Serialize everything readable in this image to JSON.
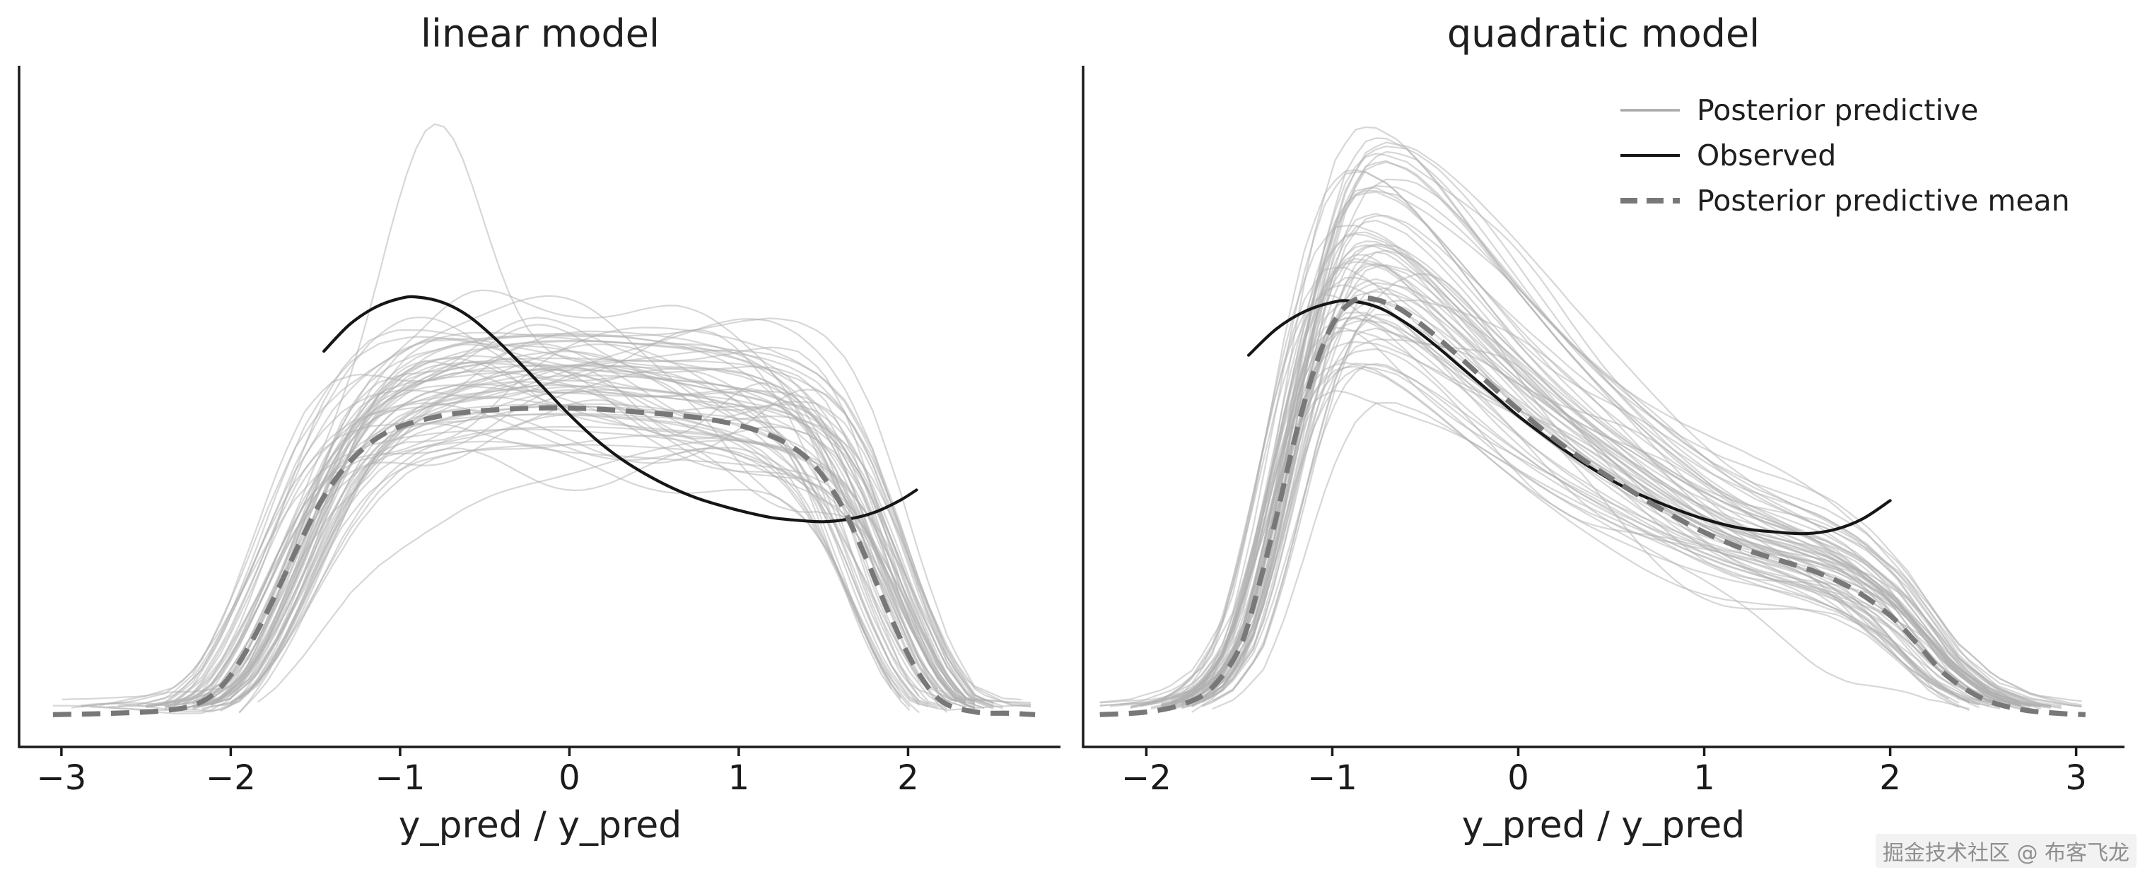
{
  "watermark": "掘金技术社区 @ 布客飞龙",
  "colors": {
    "background": "#ffffff",
    "observed": "#161616",
    "posterior_predictive": "#b0b0b0",
    "posterior_predictive_mean": "#787878",
    "axis": "#1a1a1a",
    "text": "#1f1f1f"
  },
  "legend": {
    "position": "upper right of quadratic panel",
    "items": [
      {
        "label": "Posterior predictive",
        "style": "thin-gray-line"
      },
      {
        "label": "Observed",
        "style": "solid-black-line"
      },
      {
        "label": "Posterior predictive mean",
        "style": "dashed-gray-line"
      }
    ]
  },
  "chart_data": [
    {
      "type": "line",
      "title": "linear model",
      "xlabel": "y_pred / y_pred",
      "x_ticks": [
        -3,
        -2,
        -1,
        0,
        1,
        2
      ],
      "xlim": [
        -3.25,
        2.9
      ],
      "ylim": [
        0,
        0.5
      ],
      "grid": false,
      "series": [
        {
          "name": "Observed",
          "x": [
            -1.45,
            -1.3,
            -1.15,
            -1.0,
            -0.9,
            -0.75,
            -0.6,
            -0.45,
            -0.3,
            -0.15,
            0.0,
            0.15,
            0.3,
            0.45,
            0.6,
            0.75,
            0.9,
            1.05,
            1.2,
            1.35,
            1.5,
            1.65,
            1.8,
            1.95,
            2.05
          ],
          "y": [
            0.285,
            0.305,
            0.318,
            0.325,
            0.326,
            0.322,
            0.312,
            0.296,
            0.277,
            0.257,
            0.237,
            0.219,
            0.204,
            0.192,
            0.182,
            0.174,
            0.168,
            0.163,
            0.159,
            0.157,
            0.156,
            0.158,
            0.163,
            0.172,
            0.18
          ]
        },
        {
          "name": "Posterior predictive mean",
          "x": [
            -3.05,
            -2.7,
            -2.4,
            -2.2,
            -2.05,
            -1.9,
            -1.75,
            -1.6,
            -1.45,
            -1.3,
            -1.15,
            -1.0,
            -0.8,
            -0.6,
            -0.4,
            -0.2,
            0.0,
            0.2,
            0.4,
            0.6,
            0.8,
            1.0,
            1.15,
            1.3,
            1.45,
            1.6,
            1.75,
            1.9,
            2.05,
            2.2,
            2.4,
            2.6,
            2.75
          ],
          "y": [
            0.01,
            0.011,
            0.013,
            0.018,
            0.032,
            0.06,
            0.097,
            0.138,
            0.175,
            0.201,
            0.218,
            0.228,
            0.235,
            0.239,
            0.241,
            0.242,
            0.242,
            0.241,
            0.239,
            0.237,
            0.234,
            0.229,
            0.223,
            0.214,
            0.198,
            0.17,
            0.129,
            0.083,
            0.044,
            0.02,
            0.012,
            0.011,
            0.01
          ]
        },
        {
          "name": "Posterior predictive",
          "n_samples": 65,
          "seed": 13,
          "amp_min": 0.8,
          "amp_span": 0.5,
          "x_jitter": 0.21,
          "n_bumps": 4,
          "bump_amp": 0.045,
          "outlier_bump": {
            "x": -0.8,
            "amp": 0.2,
            "w": 0.4
          }
        }
      ]
    },
    {
      "type": "line",
      "title": "quadratic model",
      "xlabel": "y_pred / y_pred",
      "x_ticks": [
        -2,
        -1,
        0,
        1,
        2,
        3
      ],
      "xlim": [
        -2.34,
        3.26
      ],
      "ylim": [
        0,
        0.5
      ],
      "grid": false,
      "series": [
        {
          "name": "Observed",
          "x": [
            -1.45,
            -1.3,
            -1.15,
            -1.0,
            -0.9,
            -0.75,
            -0.6,
            -0.45,
            -0.3,
            -0.15,
            0.0,
            0.2,
            0.4,
            0.6,
            0.8,
            1.0,
            1.2,
            1.4,
            1.55,
            1.7,
            1.85,
            2.0
          ],
          "y": [
            0.282,
            0.302,
            0.315,
            0.322,
            0.323,
            0.318,
            0.306,
            0.29,
            0.272,
            0.254,
            0.236,
            0.215,
            0.196,
            0.18,
            0.168,
            0.158,
            0.151,
            0.148,
            0.147,
            0.15,
            0.158,
            0.172
          ]
        },
        {
          "name": "Posterior predictive mean",
          "x": [
            -2.25,
            -2.0,
            -1.8,
            -1.65,
            -1.5,
            -1.4,
            -1.3,
            -1.2,
            -1.1,
            -1.0,
            -0.9,
            -0.8,
            -0.65,
            -0.5,
            -0.35,
            -0.2,
            0.0,
            0.2,
            0.4,
            0.6,
            0.8,
            1.0,
            1.2,
            1.4,
            1.6,
            1.8,
            2.0,
            2.15,
            2.3,
            2.5,
            2.7,
            2.9,
            3.05
          ],
          "y": [
            0.01,
            0.012,
            0.018,
            0.03,
            0.06,
            0.105,
            0.16,
            0.22,
            0.27,
            0.305,
            0.322,
            0.325,
            0.318,
            0.303,
            0.285,
            0.266,
            0.241,
            0.218,
            0.198,
            0.18,
            0.163,
            0.148,
            0.136,
            0.127,
            0.118,
            0.105,
            0.085,
            0.063,
            0.04,
            0.022,
            0.014,
            0.011,
            0.01
          ]
        },
        {
          "name": "Posterior predictive",
          "n_samples": 65,
          "seed": 29,
          "amp_min": 0.82,
          "amp_span": 0.52,
          "x_jitter": 0.14,
          "n_bumps": 4,
          "bump_amp": 0.042
        }
      ]
    }
  ]
}
